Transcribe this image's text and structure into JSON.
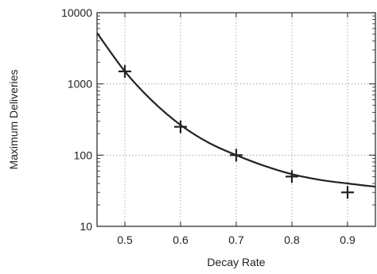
{
  "chart_data": {
    "type": "scatter",
    "xlabel": "Decay Rate",
    "ylabel": "Maximum Deliveries",
    "xlim": [
      0.45,
      0.95
    ],
    "ylim": [
      10,
      10000
    ],
    "yscale": "log",
    "grid": true,
    "x_ticks": [
      0.5,
      0.6,
      0.7,
      0.8,
      0.9
    ],
    "x_tick_labels": [
      "0.5",
      "0.6",
      "0.7",
      "0.8",
      "0.9"
    ],
    "y_ticks": [
      10,
      100,
      1000,
      10000
    ],
    "y_tick_labels": [
      "10",
      "100",
      "1000",
      "10000"
    ],
    "series": [
      {
        "marker": "plus",
        "x": [
          0.5,
          0.6,
          0.7,
          0.8,
          0.9
        ],
        "y": [
          1500,
          250,
          100,
          50,
          30
        ]
      },
      {
        "line": "solid",
        "x": [
          0.45,
          0.5,
          0.55,
          0.6,
          0.65,
          0.7,
          0.75,
          0.8,
          0.85,
          0.9,
          0.95
        ],
        "y": [
          5200,
          1500,
          570,
          265,
          150,
          100,
          71,
          54,
          45,
          40,
          36
        ]
      }
    ],
    "colors": {
      "line": "#222222",
      "marker": "#222222",
      "grid": "#9a9a9a"
    }
  }
}
